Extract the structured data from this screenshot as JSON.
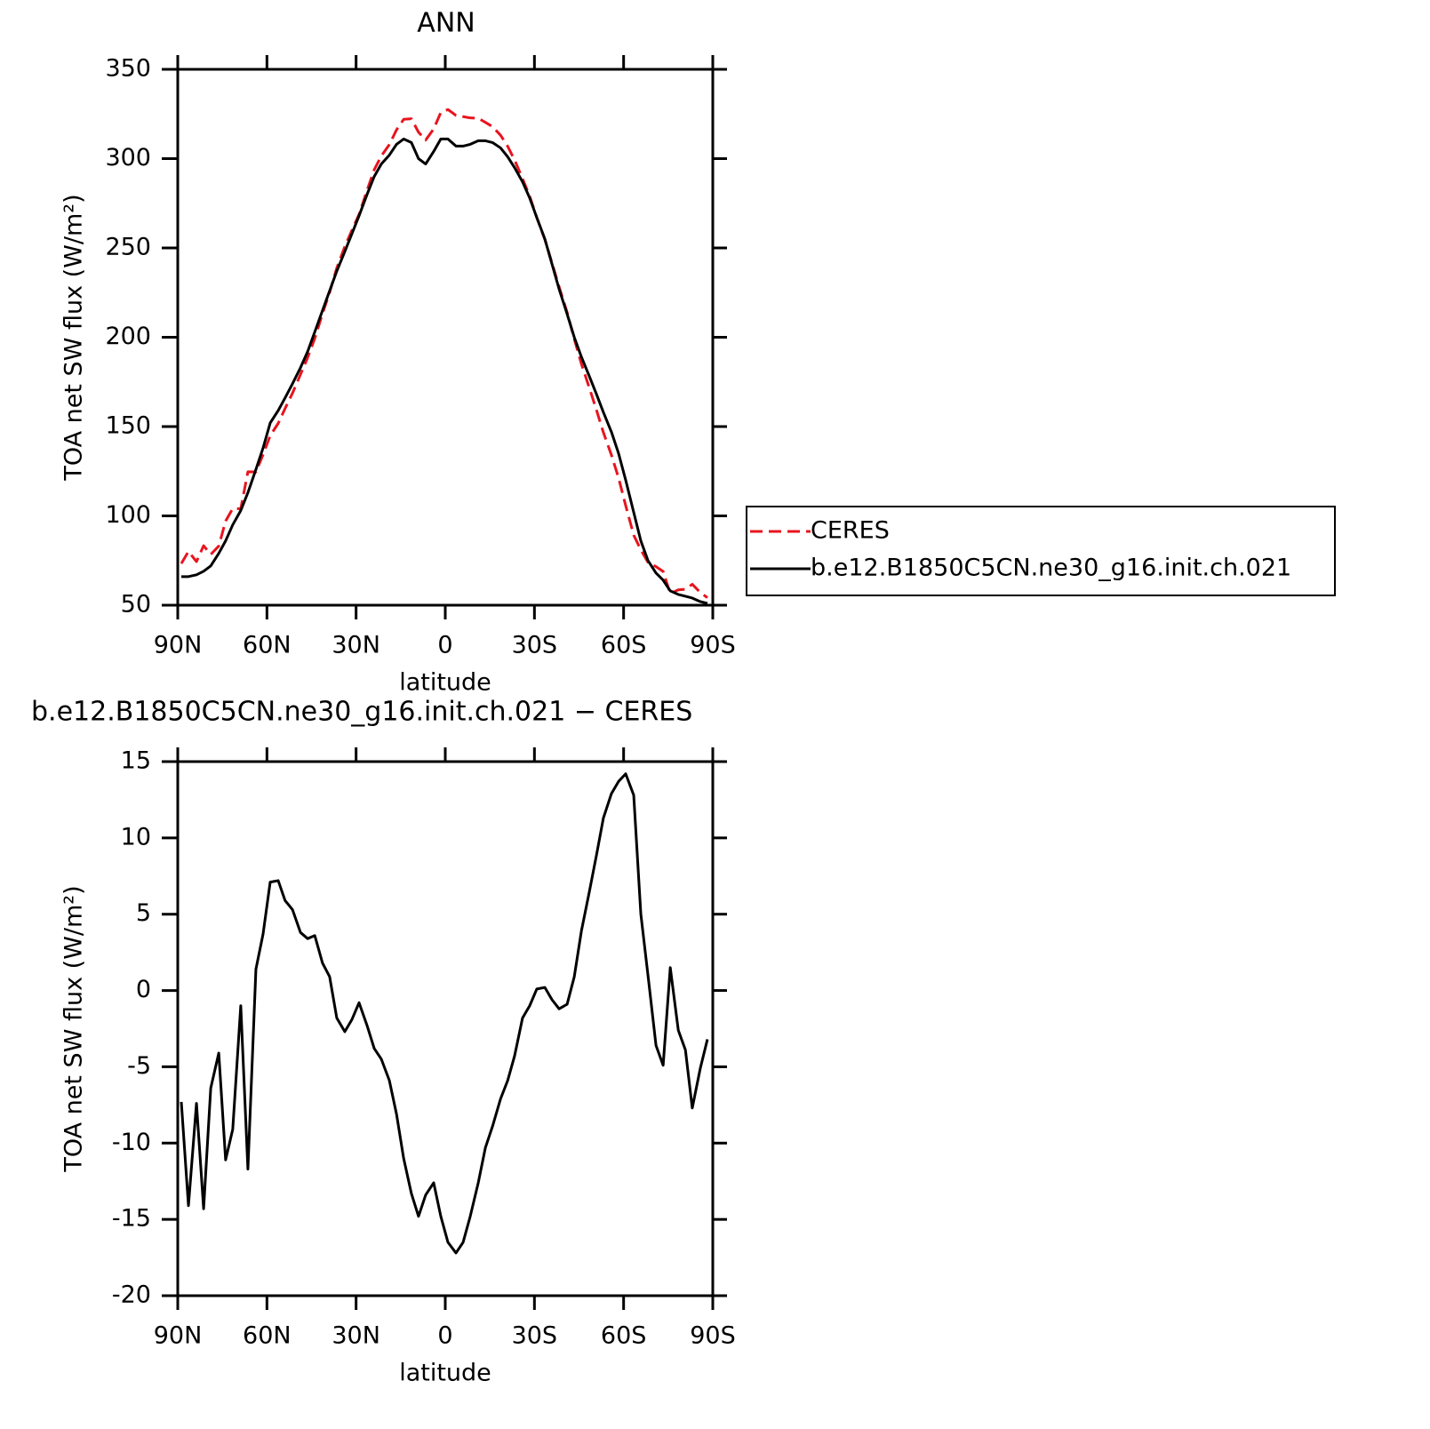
{
  "chart_data": [
    {
      "type": "line",
      "title": "ANN",
      "x_label": "latitude",
      "y_label": "TOA net SW flux (W/m²)",
      "x": [
        88.8,
        86.4,
        83.7,
        81.3,
        78.9,
        76.2,
        73.9,
        71.5,
        68.8,
        66.4,
        63.7,
        61.3,
        58.9,
        56.2,
        53.9,
        51.4,
        48.7,
        46.3,
        43.9,
        41.3,
        38.9,
        36.5,
        33.8,
        31.4,
        29.0,
        26.3,
        23.9,
        21.5,
        18.8,
        16.4,
        14.0,
        11.4,
        9.0,
        6.6,
        3.9,
        1.5,
        -0.9,
        -3.6,
        -6.0,
        -8.4,
        -11.1,
        -13.5,
        -15.9,
        -18.6,
        -21.0,
        -23.3,
        -26.0,
        -28.4,
        -30.8,
        -33.5,
        -35.9,
        -38.3,
        -41.0,
        -43.4,
        -45.8,
        -48.5,
        -50.9,
        -53.2,
        -55.9,
        -58.3,
        -60.7,
        -63.4,
        -65.8,
        -68.2,
        -70.9,
        -73.3,
        -75.7,
        -78.4,
        -80.8,
        -83.1,
        -85.8,
        -88.2
      ],
      "series": [
        {
          "name": "CERES",
          "color": "#e8141e",
          "line_style": "dashed",
          "values": [
            73.3,
            80.1,
            74.4,
            83.3,
            78.4,
            83.1,
            97.1,
            104.1,
            104,
            124.7,
            124.6,
            134.3,
            144.9,
            151.8,
            160.1,
            168.7,
            179.2,
            188.6,
            199.4,
            213.2,
            225.1,
            238.8,
            250.7,
            259.9,
            268.8,
            282.3,
            293.8,
            301.5,
            307.9,
            316.1,
            322,
            322.3,
            314.8,
            310.4,
            316.6,
            325.8,
            327.5,
            324.2,
            323.5,
            322.8,
            322.6,
            320.3,
            317.9,
            313.1,
            306.9,
            299.3,
            288.8,
            279,
            266.9,
            254.8,
            241.6,
            228.2,
            213.9,
            199.1,
            185.1,
            171.5,
            159.1,
            146.7,
            134.1,
            121.3,
            105.8,
            89.2,
            81,
            74,
            71.6,
            68.9,
            56.5,
            58.6,
            58.9,
            61.7,
            57.1,
            54.2
          ]
        },
        {
          "name": "b.e12.B1850C5CN.ne30_g16.init.ch.021",
          "color": "#000000",
          "line_style": "solid",
          "values": [
            66,
            66,
            67,
            69,
            72,
            79,
            86,
            95,
            103,
            113,
            126,
            138,
            152,
            159,
            166,
            174,
            183,
            192,
            203,
            215,
            226,
            237,
            248,
            258,
            268,
            280,
            290,
            297,
            302,
            308,
            311,
            309,
            300,
            297,
            304,
            311,
            311,
            307,
            307,
            308,
            310,
            310,
            309,
            306,
            301,
            295,
            287,
            278,
            267,
            255,
            241,
            227,
            213,
            200,
            189,
            178,
            168,
            158,
            147,
            135,
            120,
            102,
            86,
            75,
            68,
            64,
            58,
            56,
            55,
            54,
            52,
            51
          ]
        }
      ],
      "xlim": [
        90,
        -90
      ],
      "xticks": [
        {
          "value": 90,
          "label": "90N"
        },
        {
          "value": 60,
          "label": "60N"
        },
        {
          "value": 30,
          "label": "30N"
        },
        0,
        {
          "value": -30,
          "label": "30S"
        },
        {
          "value": -60,
          "label": "60S"
        },
        {
          "value": -90,
          "label": "90S"
        }
      ],
      "ylim": [
        50,
        350
      ],
      "yticks": [
        50,
        100,
        150,
        200,
        250,
        300,
        350
      ],
      "legend": "right"
    },
    {
      "type": "line",
      "title": "b.e12.B1850C5CN.ne30_g16.init.ch.021 − CERES",
      "x_label": "latitude",
      "y_label": "TOA net SW flux (W/m²)",
      "x": [
        88.8,
        86.4,
        83.7,
        81.3,
        78.9,
        76.2,
        73.9,
        71.5,
        68.8,
        66.4,
        63.7,
        61.3,
        58.9,
        56.2,
        53.9,
        51.4,
        48.7,
        46.3,
        43.9,
        41.3,
        38.9,
        36.5,
        33.8,
        31.4,
        29.0,
        26.3,
        23.9,
        21.5,
        18.8,
        16.4,
        14.0,
        11.4,
        9.0,
        6.6,
        3.9,
        1.5,
        -0.9,
        -3.6,
        -6.0,
        -8.4,
        -11.1,
        -13.5,
        -15.9,
        -18.6,
        -21.0,
        -23.3,
        -26.0,
        -28.4,
        -30.8,
        -33.5,
        -35.9,
        -38.3,
        -41.0,
        -43.4,
        -45.8,
        -48.5,
        -50.9,
        -53.2,
        -55.9,
        -58.3,
        -60.7,
        -63.4,
        -65.8,
        -68.2,
        -70.9,
        -73.3,
        -75.7,
        -78.4,
        -80.8,
        -83.1,
        -85.8,
        -88.2
      ],
      "series": [
        {
          "color": "#000000",
          "line_style": "solid",
          "values": [
            -7.3,
            -14.1,
            -7.4,
            -14.3,
            -6.4,
            -4.1,
            -11.1,
            -9.1,
            -1.0,
            -11.7,
            1.4,
            3.7,
            7.1,
            7.2,
            5.9,
            5.3,
            3.8,
            3.4,
            3.6,
            1.8,
            0.9,
            -1.8,
            -2.7,
            -1.9,
            -0.8,
            -2.3,
            -3.8,
            -4.5,
            -5.9,
            -8.1,
            -11.0,
            -13.3,
            -14.8,
            -13.4,
            -12.6,
            -14.8,
            -16.5,
            -17.2,
            -16.5,
            -14.8,
            -12.6,
            -10.3,
            -8.9,
            -7.1,
            -5.9,
            -4.3,
            -1.8,
            -1.0,
            0.1,
            0.2,
            -0.6,
            -1.2,
            -0.9,
            0.9,
            3.9,
            6.5,
            8.9,
            11.3,
            12.9,
            13.7,
            14.2,
            12.8,
            5.0,
            1.0,
            -3.6,
            -4.9,
            1.5,
            -2.6,
            -3.9,
            -7.7,
            -5.1,
            -3.2
          ]
        }
      ],
      "xlim": [
        90,
        -90
      ],
      "xticks": [
        {
          "value": 90,
          "label": "90N"
        },
        {
          "value": 60,
          "label": "60N"
        },
        {
          "value": 30,
          "label": "30N"
        },
        0,
        {
          "value": -30,
          "label": "30S"
        },
        {
          "value": -60,
          "label": "60S"
        },
        {
          "value": -90,
          "label": "90S"
        }
      ],
      "ylim": [
        -20,
        15
      ],
      "yticks": [
        -20,
        -15,
        -10,
        -5,
        0,
        5,
        10,
        15
      ]
    }
  ]
}
